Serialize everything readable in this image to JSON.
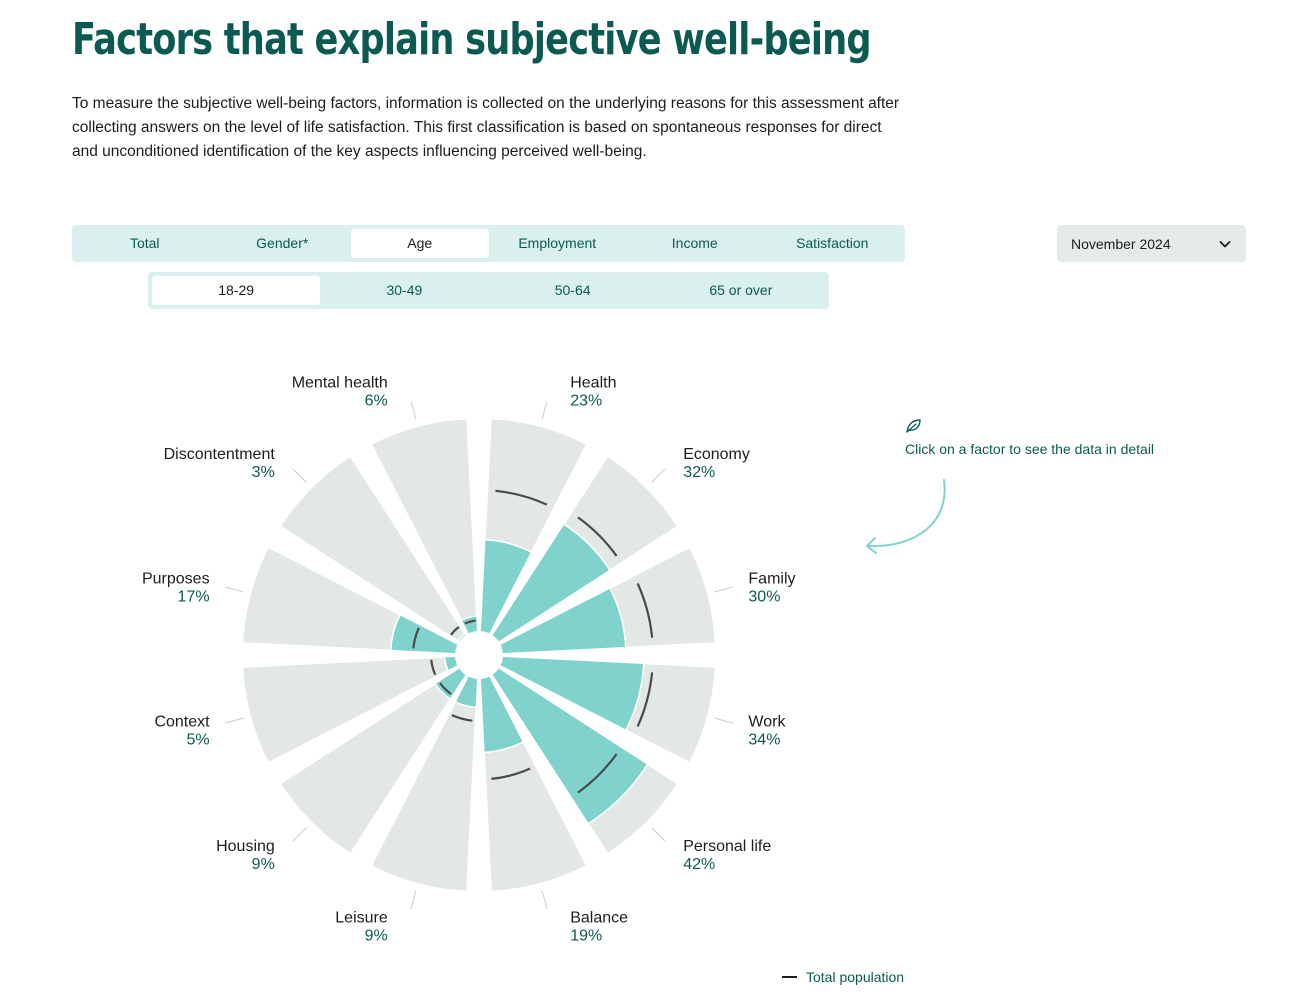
{
  "page": {
    "title": "Factors that explain subjective well-being",
    "intro": "To measure the subjective well-being factors, information is collected on the underlying reasons for this assessment after collecting answers on the level of life satisfaction. This first classification is based on spontaneous responses for direct and unconditioned identification of the key aspects influencing perceived well-being."
  },
  "tabs": [
    "Total",
    "Gender*",
    "Age",
    "Employment",
    "Income",
    "Satisfaction"
  ],
  "active_tab": "Age",
  "subtabs": [
    "18-29",
    "30-49",
    "50-64",
    "65 or over"
  ],
  "active_subtab": "18-29",
  "dropdown": {
    "value": "November 2024",
    "icon": "chevron-down-icon"
  },
  "hint": {
    "text": "Click on a factor to see the data in detail",
    "icon": "leaf-icon"
  },
  "legend": {
    "label": "Total population"
  },
  "colors": {
    "accent": "#0b5a52",
    "fill": "#7fd3cc",
    "background_petal": "#e3e8e7",
    "total_line": "#4a4a4a",
    "tab_bg": "#daf0ee"
  },
  "chart_data": {
    "type": "polar-area",
    "max": 50,
    "categories": [
      "Health",
      "Economy",
      "Family",
      "Work",
      "Personal life",
      "Balance",
      "Leisure",
      "Housing",
      "Context",
      "Purposes",
      "Discontentment",
      "Mental health"
    ],
    "series": [
      {
        "values": [
          23,
          32,
          30,
          34,
          42,
          19,
          9,
          9,
          5,
          17,
          3,
          6
        ]
      },
      {
        "name": "Total population",
        "values": [
          34,
          35,
          36,
          36,
          35,
          25,
          12,
          8,
          8,
          12,
          5,
          5
        ]
      }
    ]
  }
}
